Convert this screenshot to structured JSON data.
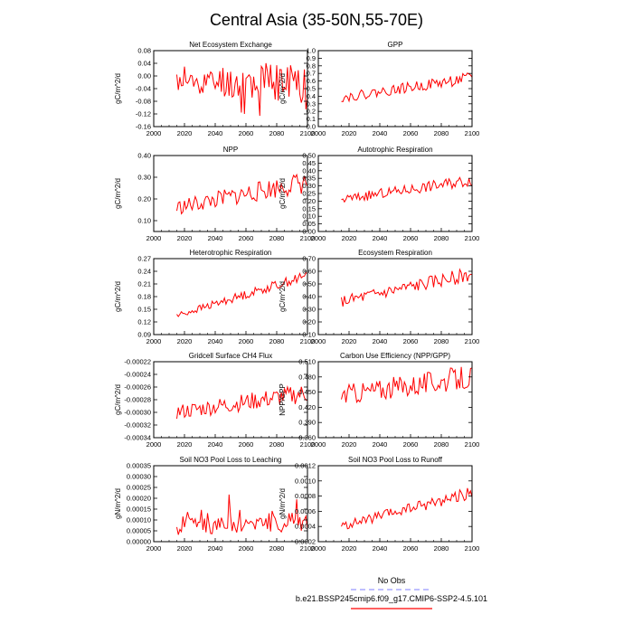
{
  "figure": {
    "title": "Central Asia (35-50N,55-70E)",
    "legend": {
      "obs_label": "No Obs",
      "obs_color": "#9999ff",
      "model_label": "b.e21.BSSP245cmip6.f09_g17.CMIP6-SSP2-4.5.101",
      "model_color": "#ff0000"
    }
  },
  "chart_data": [
    {
      "type": "line",
      "title": "Net Ecosystem Exchange",
      "ylabel": "gC/m^2/d",
      "xlim": [
        2000,
        2100
      ],
      "ylim": [
        -0.16,
        0.08
      ],
      "xticks": [
        "2000",
        "2020",
        "2040",
        "2060",
        "2080",
        "2100"
      ],
      "yticks": [
        "0.08",
        "0.04",
        "0.00",
        "-0.04",
        "-0.08",
        "-0.12",
        "-0.16"
      ],
      "x_start": 2015,
      "x_end": 2100,
      "shape": "flat",
      "base": -0.02,
      "trend": 0.0,
      "noise": 0.03,
      "noise_growth": 1.6,
      "seed": 11
    },
    {
      "type": "line",
      "title": "GPP",
      "ylabel": "gC/m^2/d",
      "xlim": [
        2000,
        2100
      ],
      "ylim": [
        0,
        1
      ],
      "xticks": [
        "2000",
        "2020",
        "2040",
        "2060",
        "2080",
        "2100"
      ],
      "yticks": [
        "1.0",
        "0.9",
        "0.8",
        "0.7",
        "0.6",
        "0.5",
        "0.4",
        "0.3",
        "0.2",
        "0.1",
        "0.0"
      ],
      "x_start": 2015,
      "x_end": 2100,
      "shape": "trend",
      "base": 0.38,
      "trend": 0.26,
      "noise": 0.06,
      "noise_growth": 0.3,
      "seed": 22
    },
    {
      "type": "line",
      "title": "NPP",
      "ylabel": "gC/m^2/d",
      "xlim": [
        2000,
        2100
      ],
      "ylim": [
        0.05,
        0.4
      ],
      "xticks": [
        "2000",
        "2020",
        "2040",
        "2060",
        "2080",
        "2100"
      ],
      "yticks": [
        "0.40",
        "0.30",
        "0.20",
        "0.10"
      ],
      "x_start": 2015,
      "x_end": 2100,
      "shape": "trend",
      "base": 0.16,
      "trend": 0.12,
      "noise": 0.035,
      "noise_growth": 0.5,
      "seed": 33
    },
    {
      "type": "line",
      "title": "Autotrophic Respiration",
      "ylabel": "gC/m^2/d",
      "xlim": [
        2000,
        2100
      ],
      "ylim": [
        0,
        0.5
      ],
      "xticks": [
        "2000",
        "2020",
        "2040",
        "2060",
        "2080",
        "2100"
      ],
      "yticks": [
        "0.50",
        "0.45",
        "0.40",
        "0.35",
        "0.30",
        "0.25",
        "0.20",
        "0.15",
        "0.10",
        "0.05",
        "0.00"
      ],
      "x_start": 2015,
      "x_end": 2100,
      "shape": "trend",
      "base": 0.21,
      "trend": 0.13,
      "noise": 0.03,
      "noise_growth": 0.3,
      "seed": 44
    },
    {
      "type": "line",
      "title": "Heterotrophic Respiration",
      "ylabel": "gC/m^2/d",
      "xlim": [
        2000,
        2100
      ],
      "ylim": [
        0.09,
        0.27
      ],
      "xticks": [
        "2000",
        "2020",
        "2040",
        "2060",
        "2080",
        "2100"
      ],
      "yticks": [
        "0.27",
        "0.24",
        "0.21",
        "0.18",
        "0.15",
        "0.12",
        "0.09"
      ],
      "x_start": 2015,
      "x_end": 2100,
      "shape": "trend",
      "base": 0.135,
      "trend": 0.095,
      "noise": 0.008,
      "noise_growth": 0.5,
      "seed": 55
    },
    {
      "type": "line",
      "title": "Ecosystem Respiration",
      "ylabel": "gC/m^2/d",
      "xlim": [
        2000,
        2100
      ],
      "ylim": [
        0.1,
        0.7
      ],
      "xticks": [
        "2000",
        "2020",
        "2040",
        "2060",
        "2080",
        "2100"
      ],
      "yticks": [
        "0.70",
        "0.60",
        "0.50",
        "0.40",
        "0.30",
        "0.20",
        "0.10"
      ],
      "x_start": 2015,
      "x_end": 2100,
      "shape": "trend",
      "base": 0.36,
      "trend": 0.22,
      "noise": 0.045,
      "noise_growth": 0.3,
      "seed": 66
    },
    {
      "type": "line",
      "title": "Gridcell Surface CH4 Flux",
      "ylabel": "gC/m^2/d",
      "xlim": [
        2000,
        2100
      ],
      "ylim": [
        -0.00034,
        -0.00022
      ],
      "xticks": [
        "2000",
        "2020",
        "2040",
        "2060",
        "2080",
        "2100"
      ],
      "yticks": [
        "-0.00022",
        "-0.00024",
        "-0.00026",
        "-0.00028",
        "-0.00030",
        "-0.00032",
        "-0.00034"
      ],
      "x_start": 2015,
      "x_end": 2100,
      "shape": "trend",
      "base": -0.0003,
      "trend": 3e-05,
      "noise": 1.2e-05,
      "noise_growth": 0.3,
      "seed": 77
    },
    {
      "type": "line",
      "title": "Carbon Use Efficiency (NPP/GPP)",
      "ylabel": "NPP/GPP",
      "xlim": [
        2000,
        2100
      ],
      "ylim": [
        0.36,
        0.51
      ],
      "xticks": [
        "2000",
        "2020",
        "2040",
        "2060",
        "2080",
        "2100"
      ],
      "yticks": [
        "0.510",
        "0.480",
        "0.450",
        "0.420",
        "0.390",
        "0.360"
      ],
      "x_start": 2015,
      "x_end": 2100,
      "shape": "trend",
      "base": 0.445,
      "trend": 0.035,
      "noise": 0.02,
      "noise_growth": 0.2,
      "seed": 88
    },
    {
      "type": "line",
      "title": "Soil NO3 Pool Loss to Leaching",
      "ylabel": "gN/m^2/d",
      "xlim": [
        2000,
        2100
      ],
      "ylim": [
        0,
        0.00035
      ],
      "xticks": [
        "2000",
        "2020",
        "2040",
        "2060",
        "2080",
        "2100"
      ],
      "yticks": [
        "0.00035",
        "0.00030",
        "0.00025",
        "0.00020",
        "0.00015",
        "0.00010",
        "0.00005",
        "0.00000"
      ],
      "x_start": 2015,
      "x_end": 2100,
      "shape": "spiky",
      "base": 7e-05,
      "trend": 2e-05,
      "noise": 4e-05,
      "noise_growth": 0.2,
      "seed": 99
    },
    {
      "type": "line",
      "title": "Soil NO3 Pool Loss to Runoff",
      "ylabel": "gN/m^2/d",
      "xlim": [
        2000,
        2100
      ],
      "ylim": [
        0.0002,
        0.0012
      ],
      "xticks": [
        "2000",
        "2020",
        "2040",
        "2060",
        "2080",
        "2100"
      ],
      "yticks": [
        "0.0012",
        "0.0010",
        "0.0008",
        "0.0006",
        "0.0004",
        "0.0002"
      ],
      "x_start": 2015,
      "x_end": 2100,
      "shape": "trend",
      "base": 0.0004,
      "trend": 0.00045,
      "noise": 6e-05,
      "noise_growth": 0.4,
      "seed": 111
    }
  ]
}
